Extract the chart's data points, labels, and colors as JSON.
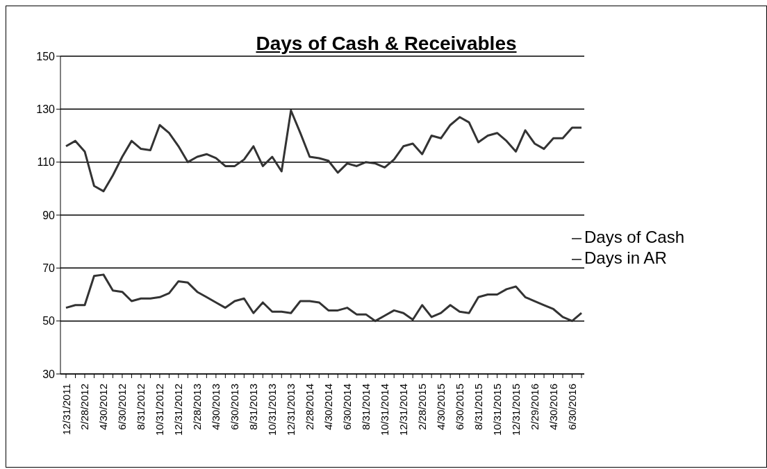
{
  "chart_data": {
    "type": "line",
    "title": "Days of Cash & Receivables",
    "categories": [
      "12/31/2011",
      null,
      "2/28/2012",
      null,
      "4/30/2012",
      null,
      "6/30/2012",
      null,
      "8/31/2012",
      null,
      "10/31/2012",
      null,
      "12/31/2012",
      null,
      "2/28/2013",
      null,
      "4/30/2013",
      null,
      "6/30/2013",
      null,
      "8/31/2013",
      null,
      "10/31/2013",
      null,
      "12/31/2013",
      null,
      "2/28/2014",
      null,
      "4/30/2014",
      null,
      "6/30/2014",
      null,
      "8/31/2014",
      null,
      "10/31/2014",
      null,
      "12/31/2014",
      null,
      "2/28/2015",
      null,
      "4/30/2015",
      null,
      "6/30/2015",
      null,
      "8/31/2015",
      null,
      "10/31/2015",
      null,
      "12/31/2015",
      null,
      "2/29/2016",
      null,
      "4/30/2016",
      null,
      "6/30/2016",
      null
    ],
    "series": [
      {
        "name": "Days of Cash",
        "color": "#333333",
        "values": [
          116,
          118,
          114,
          101,
          99,
          105,
          112,
          118,
          115,
          114.5,
          124,
          121,
          116,
          110,
          112,
          113,
          111.5,
          108.5,
          108.5,
          111,
          116,
          108.5,
          112,
          106.5,
          129.5,
          121,
          112,
          111.5,
          110.5,
          106,
          109.5,
          108.5,
          110,
          109.5,
          108,
          111,
          116,
          117,
          113,
          120,
          119,
          124,
          127,
          125,
          117.5,
          120,
          121,
          118,
          114,
          122,
          117,
          115,
          119,
          119,
          123,
          123
        ]
      },
      {
        "name": "Days in AR",
        "color": "#333333",
        "values": [
          55,
          56,
          56,
          67,
          67.5,
          61.5,
          61,
          57.5,
          58.5,
          58.5,
          59,
          60.5,
          65,
          64.5,
          61,
          59,
          57,
          55,
          57.5,
          58.5,
          53,
          57,
          53.5,
          53.5,
          53,
          57.5,
          57.5,
          57,
          54,
          54,
          55,
          52.5,
          52.5,
          50,
          52,
          54,
          53,
          50.5,
          56,
          51.5,
          53,
          56,
          53.5,
          53,
          59,
          60,
          60,
          62,
          63,
          59,
          57.5,
          56,
          54.5,
          51.5,
          50,
          53
        ]
      }
    ],
    "ylim": [
      30,
      150
    ],
    "yticks": [
      30,
      50,
      70,
      90,
      110,
      130,
      150
    ],
    "grid": "y",
    "legend": "right",
    "marker": "none",
    "line_style": "solid"
  }
}
